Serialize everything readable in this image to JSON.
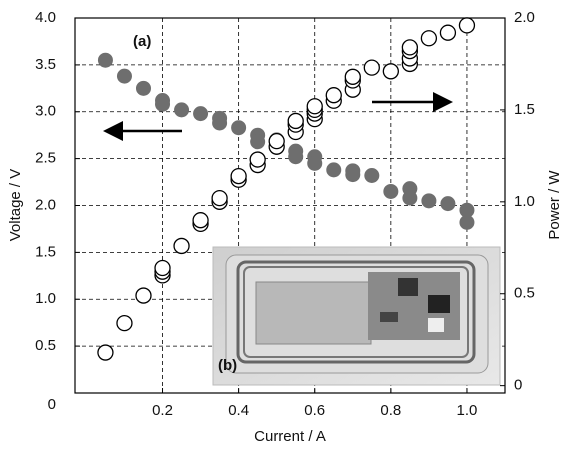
{
  "chart_data": {
    "type": "scatter",
    "xlabel": "Current / A",
    "ylabel": "Voltage / V",
    "y2label": "Power / W",
    "annotations": [
      "(a)",
      "(b)"
    ],
    "xlim": [
      -0.03,
      1.1
    ],
    "xticks": [
      {
        "value": 0.2,
        "label": "0.2"
      },
      {
        "value": 0.4,
        "label": "0.4"
      },
      {
        "value": 0.6,
        "label": "0.6"
      },
      {
        "value": 0.8,
        "label": "0.8"
      },
      {
        "value": 1.0,
        "label": "1.0"
      }
    ],
    "ylim": [
      0,
      4.0
    ],
    "yticks": [
      0,
      {
        "value": 0.5,
        "label": "0.5"
      },
      {
        "value": 1.0,
        "label": "1.0"
      },
      {
        "value": 1.5,
        "label": "1.5"
      },
      {
        "value": 2.0,
        "label": "2.0"
      },
      {
        "value": 2.5,
        "label": "2.5"
      },
      {
        "value": 3.0,
        "label": "3.0"
      },
      {
        "value": 3.5,
        "label": "3.5"
      },
      {
        "value": 4.0,
        "label": "4.0"
      }
    ],
    "y2lim": [
      -0.04,
      2.0
    ],
    "y2ticks": [
      0,
      {
        "value": 0.5,
        "label": "0.5"
      },
      {
        "value": 1.0,
        "label": "1.0"
      },
      {
        "value": 1.5,
        "label": "1.5"
      },
      {
        "value": 2.0,
        "label": "2.0"
      }
    ],
    "grid": true,
    "series": [
      {
        "color": "#6e6e6e",
        "filled": true,
        "x": [
          0.05,
          0.1,
          0.15,
          0.2,
          0.2,
          0.25,
          0.3,
          0.35,
          0.35,
          0.4,
          0.45,
          0.45,
          0.5,
          0.5,
          0.55,
          0.55,
          0.6,
          0.6,
          0.65,
          0.7,
          0.7,
          0.75,
          0.8,
          0.85,
          0.85,
          0.9,
          0.95,
          1.0,
          1.0
        ],
        "values": [
          3.55,
          3.38,
          3.25,
          3.12,
          3.08,
          3.02,
          2.98,
          2.93,
          2.88,
          2.83,
          2.75,
          2.68,
          2.7,
          2.62,
          2.58,
          2.52,
          2.52,
          2.45,
          2.38,
          2.37,
          2.33,
          2.32,
          2.15,
          2.18,
          2.08,
          2.05,
          2.02,
          1.95,
          1.82
        ]
      },
      {
        "color": "#000000",
        "filled": false,
        "axis": "y2",
        "x": [
          0.05,
          0.1,
          0.15,
          0.2,
          0.2,
          0.2,
          0.25,
          0.3,
          0.3,
          0.35,
          0.35,
          0.4,
          0.4,
          0.45,
          0.45,
          0.5,
          0.5,
          0.55,
          0.55,
          0.55,
          0.6,
          0.6,
          0.6,
          0.6,
          0.65,
          0.65,
          0.7,
          0.7,
          0.7,
          0.75,
          0.8,
          0.85,
          0.85,
          0.85,
          0.85,
          0.9,
          0.95,
          1.0
        ],
        "values": [
          0.18,
          0.34,
          0.49,
          0.6,
          0.62,
          0.64,
          0.76,
          0.88,
          0.9,
          1.0,
          1.02,
          1.12,
          1.14,
          1.2,
          1.23,
          1.3,
          1.33,
          1.38,
          1.42,
          1.44,
          1.45,
          1.48,
          1.5,
          1.52,
          1.55,
          1.58,
          1.61,
          1.66,
          1.68,
          1.73,
          1.71,
          1.75,
          1.78,
          1.82,
          1.84,
          1.89,
          1.92,
          1.96
        ]
      }
    ]
  }
}
